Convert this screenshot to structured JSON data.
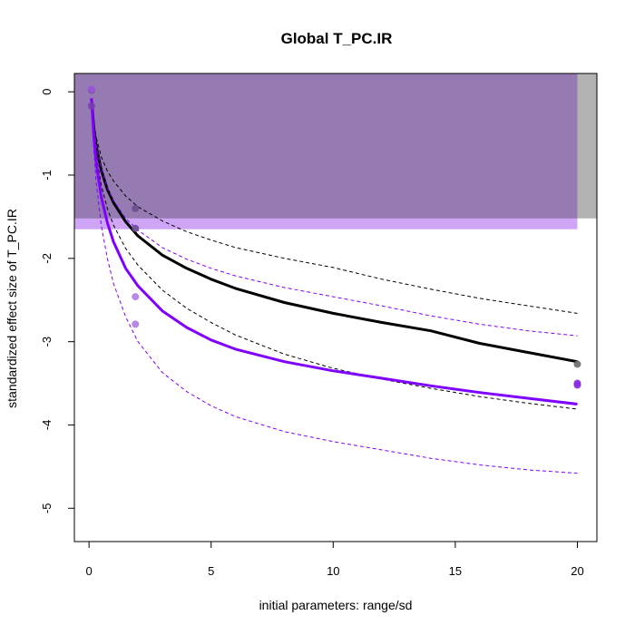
{
  "chart_data": {
    "type": "line",
    "title": "Global T_PC.IR",
    "xlabel": "initial parameters: range/sd",
    "ylabel": "standardized effect size of T_PC.IR",
    "xlim": [
      -0.6,
      20.8
    ],
    "ylim": [
      -5.4,
      0.22
    ],
    "x_ticks": [
      0,
      5,
      10,
      15,
      20
    ],
    "y_ticks": [
      0,
      -1,
      -2,
      -3,
      -4,
      -5
    ],
    "grid": false,
    "legend": "none",
    "bands": [
      {
        "name": "gray band",
        "x_range": [
          -0.6,
          20.8
        ],
        "y_range": [
          -1.52,
          0.22
        ],
        "color": "#b3b3b3"
      },
      {
        "name": "purple band",
        "x_range": [
          -0.6,
          20.0
        ],
        "y_range": [
          -1.65,
          0.22
        ],
        "color": "#cfa6f5"
      },
      {
        "name": "overlap",
        "x_range": [
          -0.6,
          20.0
        ],
        "y_range": [
          -1.52,
          0.22
        ],
        "color": "#957bb2"
      }
    ],
    "series": [
      {
        "color": "#000000",
        "style": "solid",
        "x": [
          0.1,
          0.2,
          0.3,
          0.5,
          0.75,
          1,
          1.5,
          2,
          3,
          4,
          5,
          6,
          8,
          10,
          12,
          14,
          16,
          18,
          20
        ],
        "y": [
          -0.08,
          -0.44,
          -0.66,
          -0.94,
          -1.17,
          -1.33,
          -1.56,
          -1.73,
          -1.96,
          -2.12,
          -2.25,
          -2.36,
          -2.53,
          -2.66,
          -2.77,
          -2.87,
          -3.02,
          -3.13,
          -3.24
        ]
      },
      {
        "color": "#000000",
        "style": "dashed",
        "x": [
          0.1,
          0.2,
          0.3,
          0.5,
          0.75,
          1,
          1.5,
          2,
          3,
          4,
          5,
          6,
          8,
          10,
          12,
          14,
          16,
          18,
          20
        ],
        "y": [
          -0.1,
          -0.38,
          -0.55,
          -0.78,
          -0.95,
          -1.07,
          -1.25,
          -1.38,
          -1.55,
          -1.68,
          -1.78,
          -1.87,
          -2.0,
          -2.11,
          -2.25,
          -2.37,
          -2.48,
          -2.57,
          -2.66
        ]
      },
      {
        "color": "#000000",
        "style": "dashed",
        "x": [
          0.1,
          0.2,
          0.3,
          0.5,
          0.75,
          1,
          1.5,
          2,
          3,
          4,
          5,
          6,
          8,
          10,
          12,
          14,
          16,
          18,
          20
        ],
        "y": [
          -0.1,
          -0.5,
          -0.78,
          -1.12,
          -1.4,
          -1.6,
          -1.88,
          -2.08,
          -2.38,
          -2.6,
          -2.77,
          -2.92,
          -3.15,
          -3.32,
          -3.45,
          -3.56,
          -3.66,
          -3.74,
          -3.81
        ]
      },
      {
        "color": "#7f00ff",
        "style": "solid",
        "x": [
          0.1,
          0.2,
          0.3,
          0.5,
          0.75,
          1,
          1.5,
          2,
          3,
          4,
          5,
          6,
          8,
          10,
          12,
          14,
          16,
          18,
          20
        ],
        "y": [
          -0.08,
          -0.55,
          -0.86,
          -1.26,
          -1.57,
          -1.8,
          -2.12,
          -2.33,
          -2.63,
          -2.83,
          -2.98,
          -3.09,
          -3.24,
          -3.35,
          -3.44,
          -3.53,
          -3.61,
          -3.68,
          -3.75
        ]
      },
      {
        "color": "#7f00ff",
        "style": "dashed",
        "x": [
          0.1,
          0.2,
          0.3,
          0.5,
          0.75,
          1,
          1.5,
          2,
          3,
          4,
          5,
          6,
          8,
          10,
          12,
          14,
          16,
          18,
          20
        ],
        "y": [
          -0.1,
          -0.43,
          -0.65,
          -0.93,
          -1.15,
          -1.3,
          -1.52,
          -1.66,
          -1.87,
          -2.01,
          -2.12,
          -2.21,
          -2.35,
          -2.46,
          -2.57,
          -2.69,
          -2.79,
          -2.87,
          -2.93
        ]
      },
      {
        "color": "#7f00ff",
        "style": "dashed",
        "x": [
          0.1,
          0.2,
          0.3,
          0.5,
          0.75,
          1,
          1.5,
          2,
          3,
          4,
          5,
          6,
          8,
          10,
          12,
          14,
          16,
          18,
          20
        ],
        "y": [
          -0.1,
          -0.7,
          -1.1,
          -1.6,
          -2.0,
          -2.3,
          -2.7,
          -3.0,
          -3.37,
          -3.6,
          -3.77,
          -3.9,
          -4.08,
          -4.2,
          -4.3,
          -4.4,
          -4.48,
          -4.54,
          -4.58
        ]
      }
    ],
    "points": [
      {
        "x": 0.1,
        "y": 0.02,
        "color": "#6b4e8f"
      },
      {
        "x": 0.1,
        "y": 0.03,
        "color": "#9b55dd"
      },
      {
        "x": 0.1,
        "y": -0.17,
        "color": "#7a3fae"
      },
      {
        "x": 1.9,
        "y": -1.4,
        "color": "#6b4e8f"
      },
      {
        "x": 1.9,
        "y": -1.64,
        "color": "#6b4e8f"
      },
      {
        "x": 1.9,
        "y": -2.46,
        "color": "#b07ae8"
      },
      {
        "x": 1.9,
        "y": -2.79,
        "color": "#b07ae8"
      },
      {
        "x": 20,
        "y": -3.27,
        "color": "#6a6a6a"
      },
      {
        "x": 20,
        "y": -3.5,
        "color": "#8a2be2"
      },
      {
        "x": 20,
        "y": -3.52,
        "color": "#8a2be2"
      }
    ]
  }
}
